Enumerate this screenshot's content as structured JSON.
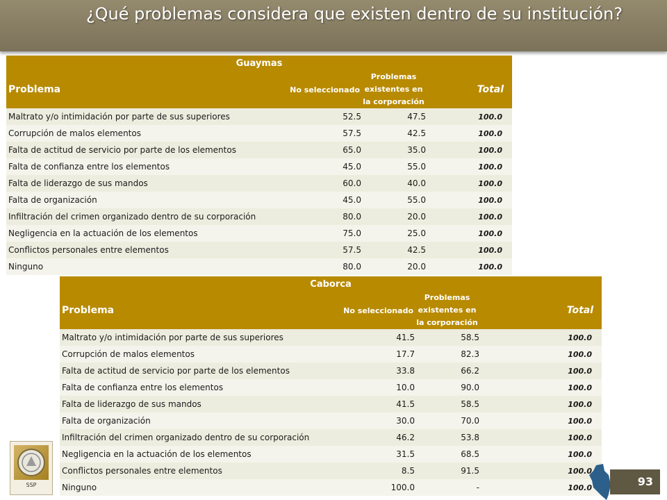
{
  "title": "¿Qué problemas considera que existen dentro de su institución?",
  "colors": {
    "banner": "#857b61",
    "header_gold": "#b88a00",
    "row_bg": "#ededdf",
    "page_badge": "#5f5843"
  },
  "tables": [
    {
      "city": "Guaymas",
      "headers": {
        "problema": "Problema",
        "no_seleccionado": "No seleccionado",
        "existentes": "Problemas existentes en la corporación",
        "total": "Total"
      },
      "rows": [
        {
          "problema": "Maltrato y/o intimidación por parte de sus superiores",
          "no_sel": "52.5",
          "existentes": "47.5",
          "total": "100.0"
        },
        {
          "problema": "Corrupción de malos elementos",
          "no_sel": "57.5",
          "existentes": "42.5",
          "total": "100.0"
        },
        {
          "problema": "Falta de actitud de servicio por parte de los elementos",
          "no_sel": "65.0",
          "existentes": "35.0",
          "total": "100.0"
        },
        {
          "problema": "Falta de confianza entre los elementos",
          "no_sel": "45.0",
          "existentes": "55.0",
          "total": "100.0"
        },
        {
          "problema": "Falta de liderazgo de sus mandos",
          "no_sel": "60.0",
          "existentes": "40.0",
          "total": "100.0"
        },
        {
          "problema": "Falta de organización",
          "no_sel": "45.0",
          "existentes": "55.0",
          "total": "100.0"
        },
        {
          "problema": "Infiltración del crimen organizado dentro de su corporación",
          "no_sel": "80.0",
          "existentes": "20.0",
          "total": "100.0"
        },
        {
          "problema": "Negligencia en la actuación de los elementos",
          "no_sel": "75.0",
          "existentes": "25.0",
          "total": "100.0"
        },
        {
          "problema": "Conflictos personales entre elementos",
          "no_sel": "57.5",
          "existentes": "42.5",
          "total": "100.0"
        },
        {
          "problema": "Ninguno",
          "no_sel": "80.0",
          "existentes": "20.0",
          "total": "100.0"
        }
      ]
    },
    {
      "city": "Caborca",
      "headers": {
        "problema": "Problema",
        "no_seleccionado": "No seleccionado",
        "existentes": "Problemas existentes en la corporación",
        "total": "Total"
      },
      "rows": [
        {
          "problema": "Maltrato y/o intimidación por parte de sus superiores",
          "no_sel": "41.5",
          "existentes": "58.5",
          "total": "100.0"
        },
        {
          "problema": "Corrupción de malos elementos",
          "no_sel": "17.7",
          "existentes": "82.3",
          "total": "100.0"
        },
        {
          "problema": "Falta de actitud de servicio por parte de los elementos",
          "no_sel": "33.8",
          "existentes": "66.2",
          "total": "100.0"
        },
        {
          "problema": "Falta de confianza entre los elementos",
          "no_sel": "10.0",
          "existentes": "90.0",
          "total": "100.0"
        },
        {
          "problema": "Falta de liderazgo de sus mandos",
          "no_sel": "41.5",
          "existentes": "58.5",
          "total": "100.0"
        },
        {
          "problema": "Falta de organización",
          "no_sel": "30.0",
          "existentes": "70.0",
          "total": "100.0"
        },
        {
          "problema": "Infiltración del crimen organizado dentro de su corporación",
          "no_sel": "46.2",
          "existentes": "53.8",
          "total": "100.0"
        },
        {
          "problema": "Negligencia en la actuación de los elementos",
          "no_sel": "31.5",
          "existentes": "68.5",
          "total": "100.0"
        },
        {
          "problema": "Conflictos personales entre elementos",
          "no_sel": "8.5",
          "existentes": "91.5",
          "total": "100.0"
        },
        {
          "problema": "Ninguno",
          "no_sel": "100.0",
          "existentes": "-",
          "total": "100.0"
        }
      ]
    }
  ],
  "logo": {
    "caption": "SSP",
    "icon": "ssp-seal-icon"
  },
  "map_icon": "sonora-map-icon",
  "page_number": "93"
}
